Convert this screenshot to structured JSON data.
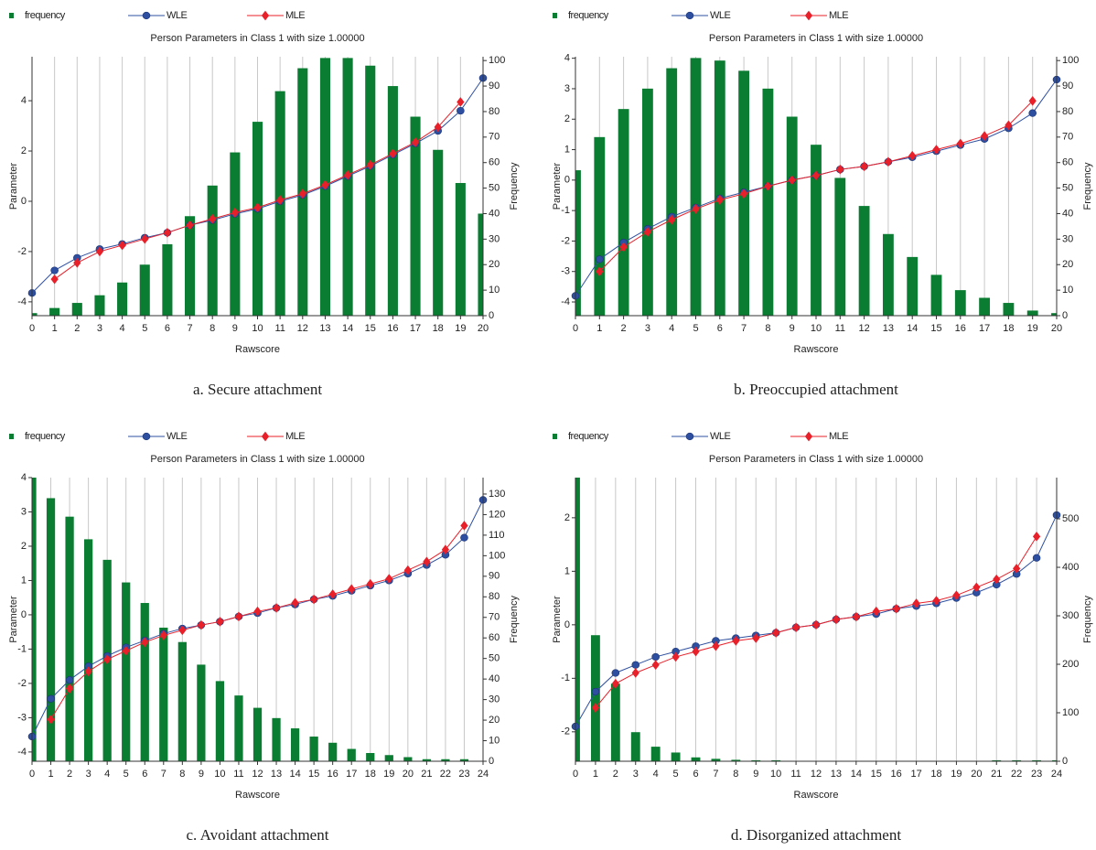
{
  "chart_data": [
    {
      "type": "combo",
      "title": "Person Parameters in Class 1 with size 1.00000",
      "caption": "a. Secure attachment",
      "xlabel": "Rawscore",
      "ylabel": "Parameter",
      "y2label": "Frequency",
      "legend": "top",
      "grid": true,
      "x": [
        0,
        1,
        2,
        3,
        4,
        5,
        6,
        7,
        8,
        9,
        10,
        11,
        12,
        13,
        14,
        15,
        16,
        17,
        18,
        19,
        20
      ],
      "xlim": [
        0,
        20
      ],
      "ylim": [
        -4.55,
        5.75
      ],
      "yticks": [
        -4,
        -2,
        0,
        2,
        4
      ],
      "y2lim": [
        0,
        101.5
      ],
      "y2ticks": [
        0,
        10,
        20,
        30,
        40,
        50,
        60,
        70,
        80,
        90,
        100
      ],
      "series": [
        {
          "name": "frequency",
          "type": "bar",
          "axis": "y2",
          "color": "#0a7d32",
          "values": [
            1,
            3,
            5,
            8,
            13,
            20,
            28,
            39,
            51,
            64,
            76,
            88,
            97,
            101,
            101,
            98,
            90,
            78,
            65,
            52,
            40
          ]
        },
        {
          "name": "WLE",
          "type": "line",
          "marker": "circle",
          "color": "#2e4fa0",
          "values": [
            -3.65,
            -2.75,
            -2.25,
            -1.9,
            -1.7,
            -1.45,
            -1.25,
            -0.95,
            -0.75,
            -0.5,
            -0.3,
            0,
            0.25,
            0.6,
            1.0,
            1.4,
            1.85,
            2.3,
            2.8,
            3.6,
            4.9
          ]
        },
        {
          "name": "MLE",
          "type": "line",
          "marker": "diamond",
          "color": "#e8202a",
          "values": [
            null,
            -3.1,
            -2.45,
            -2.0,
            -1.75,
            -1.5,
            -1.25,
            -0.95,
            -0.7,
            -0.45,
            -0.25,
            0.05,
            0.3,
            0.65,
            1.05,
            1.45,
            1.9,
            2.35,
            2.95,
            3.95,
            null
          ]
        }
      ]
    },
    {
      "type": "combo",
      "title": "Person Parameters in Class 1 with size 1.00000",
      "caption": "b. Preoccupied attachment",
      "xlabel": "Rawscore",
      "ylabel": "Parameter",
      "y2label": "Frequency",
      "legend": "top",
      "grid": true,
      "x": [
        0,
        1,
        2,
        3,
        4,
        5,
        6,
        7,
        8,
        9,
        10,
        11,
        12,
        13,
        14,
        15,
        16,
        17,
        18,
        19,
        20
      ],
      "xlim": [
        0,
        20
      ],
      "ylim": [
        -4.45,
        4.05
      ],
      "yticks": [
        -4,
        -3,
        -2,
        -1,
        0,
        1,
        2,
        3,
        4
      ],
      "y2lim": [
        0,
        101.5
      ],
      "y2ticks": [
        0,
        10,
        20,
        30,
        40,
        50,
        60,
        70,
        80,
        90,
        100
      ],
      "series": [
        {
          "name": "frequency",
          "type": "bar",
          "axis": "y2",
          "color": "#0a7d32",
          "values": [
            57,
            70,
            81,
            89,
            97,
            101,
            100,
            96,
            89,
            78,
            67,
            54,
            43,
            32,
            23,
            16,
            10,
            7,
            5,
            2,
            1
          ]
        },
        {
          "name": "WLE",
          "type": "line",
          "marker": "circle",
          "color": "#2e4fa0",
          "values": [
            -3.8,
            -2.6,
            -2.05,
            -1.6,
            -1.2,
            -0.9,
            -0.6,
            -0.4,
            -0.2,
            0,
            0.15,
            0.35,
            0.45,
            0.6,
            0.75,
            0.95,
            1.15,
            1.35,
            1.7,
            2.2,
            3.3
          ]
        },
        {
          "name": "MLE",
          "type": "line",
          "marker": "diamond",
          "color": "#e8202a",
          "values": [
            null,
            -3.0,
            -2.2,
            -1.7,
            -1.3,
            -0.95,
            -0.65,
            -0.45,
            -0.2,
            0,
            0.15,
            0.35,
            0.45,
            0.6,
            0.8,
            1.0,
            1.2,
            1.45,
            1.8,
            2.6,
            null
          ]
        }
      ]
    },
    {
      "type": "combo",
      "title": "Person Parameters in Class 1 with size 1.00000",
      "caption": "c. Avoidant attachment",
      "xlabel": "Rawscore",
      "ylabel": "Parameter",
      "y2label": "Frequency",
      "legend": "top",
      "grid": true,
      "x": [
        0,
        1,
        2,
        3,
        4,
        5,
        6,
        7,
        8,
        9,
        10,
        11,
        12,
        13,
        14,
        15,
        16,
        17,
        18,
        19,
        20,
        21,
        22,
        23,
        24
      ],
      "xlim": [
        0,
        24
      ],
      "ylim": [
        -4.27,
        4
      ],
      "yticks": [
        -4,
        -3,
        -2,
        -1,
        0,
        1,
        2,
        3,
        4
      ],
      "y2lim": [
        0,
        138
      ],
      "y2ticks": [
        0,
        10,
        20,
        30,
        40,
        50,
        60,
        70,
        80,
        90,
        100,
        110,
        120,
        130
      ],
      "series": [
        {
          "name": "frequency",
          "type": "bar",
          "axis": "y2",
          "color": "#0a7d32",
          "values": [
            138,
            128,
            119,
            108,
            98,
            87,
            77,
            65,
            58,
            47,
            39,
            32,
            26,
            21,
            16,
            12,
            9,
            6,
            4,
            3,
            2,
            1,
            1,
            1,
            0
          ]
        },
        {
          "name": "WLE",
          "type": "line",
          "marker": "circle",
          "color": "#2e4fa0",
          "values": [
            -3.55,
            -2.45,
            -1.9,
            -1.5,
            -1.2,
            -0.95,
            -0.75,
            -0.55,
            -0.4,
            -0.3,
            -0.2,
            -0.05,
            0.05,
            0.2,
            0.3,
            0.45,
            0.55,
            0.7,
            0.85,
            1.0,
            1.2,
            1.45,
            1.75,
            2.25,
            3.35
          ]
        },
        {
          "name": "MLE",
          "type": "line",
          "marker": "diamond",
          "color": "#e8202a",
          "values": [
            null,
            -3.05,
            -2.15,
            -1.65,
            -1.3,
            -1.05,
            -0.8,
            -0.6,
            -0.45,
            -0.3,
            -0.2,
            -0.05,
            0.1,
            0.2,
            0.35,
            0.45,
            0.6,
            0.75,
            0.9,
            1.05,
            1.3,
            1.55,
            1.9,
            2.6,
            null
          ]
        }
      ]
    },
    {
      "type": "combo",
      "title": "Person Parameters in Class 1 with size 1.00000",
      "caption": "d. Disorganized attachment",
      "xlabel": "Rawscore",
      "ylabel": "Parameter",
      "y2label": "Frequency",
      "legend": "top",
      "grid": true,
      "x": [
        0,
        1,
        2,
        3,
        4,
        5,
        6,
        7,
        8,
        9,
        10,
        11,
        12,
        13,
        14,
        15,
        16,
        17,
        18,
        19,
        20,
        21,
        22,
        23,
        24
      ],
      "xlim": [
        0,
        24
      ],
      "ylim": [
        -2.55,
        2.75
      ],
      "yticks": [
        -2,
        -1,
        0,
        1,
        2
      ],
      "y2lim": [
        0,
        585
      ],
      "y2ticks": [
        0,
        100,
        200,
        300,
        400,
        500
      ],
      "series": [
        {
          "name": "frequency",
          "type": "bar",
          "axis": "y2",
          "color": "#0a7d32",
          "values": [
            585,
            260,
            160,
            60,
            30,
            18,
            8,
            5,
            3,
            2,
            2,
            0,
            0,
            0,
            0,
            0,
            0,
            0,
            0,
            0,
            0,
            2,
            2,
            2,
            2
          ]
        },
        {
          "name": "WLE",
          "type": "line",
          "marker": "circle",
          "color": "#2e4fa0",
          "values": [
            -1.9,
            -1.25,
            -0.9,
            -0.75,
            -0.6,
            -0.5,
            -0.4,
            -0.3,
            -0.25,
            -0.2,
            -0.15,
            -0.05,
            0,
            0.1,
            0.15,
            0.2,
            0.3,
            0.35,
            0.4,
            0.5,
            0.6,
            0.75,
            0.95,
            1.25,
            2.05
          ]
        },
        {
          "name": "MLE",
          "type": "line",
          "marker": "diamond",
          "color": "#e8202a",
          "values": [
            null,
            -1.55,
            -1.1,
            -0.9,
            -0.75,
            -0.6,
            -0.5,
            -0.4,
            -0.3,
            -0.25,
            -0.15,
            -0.05,
            0,
            0.1,
            0.15,
            0.25,
            0.3,
            0.4,
            0.45,
            0.55,
            0.7,
            0.85,
            1.05,
            1.65,
            null
          ]
        }
      ]
    }
  ]
}
